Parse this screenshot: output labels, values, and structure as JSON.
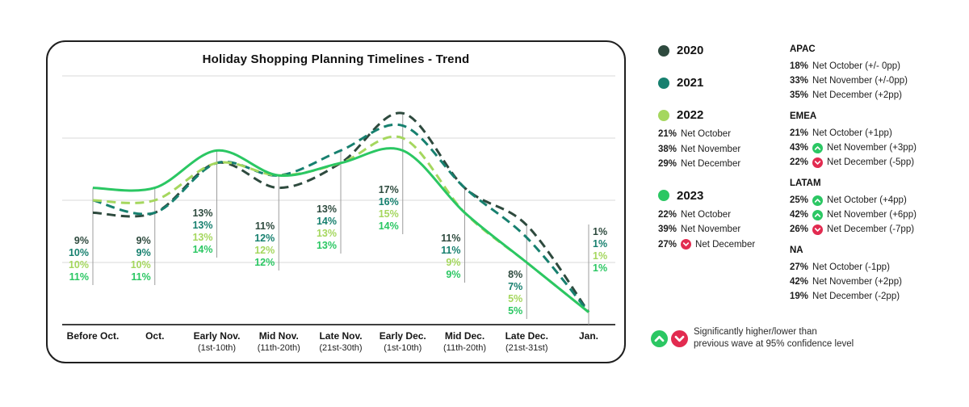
{
  "chart_data": {
    "type": "line",
    "title": "Holiday Shopping Planning Timelines - Trend",
    "ylim": [
      0,
      20
    ],
    "grid_step": 5,
    "grid": true,
    "categories": [
      {
        "label": "Before Oct.",
        "sublabel": ""
      },
      {
        "label": "Oct.",
        "sublabel": ""
      },
      {
        "label": "Early Nov.",
        "sublabel": "(1st-10th)"
      },
      {
        "label": "Mid Nov.",
        "sublabel": "(11th-20th)"
      },
      {
        "label": "Late Nov.",
        "sublabel": "(21st-30th)"
      },
      {
        "label": "Early Dec.",
        "sublabel": "(1st-10th)"
      },
      {
        "label": "Mid Dec.",
        "sublabel": "(11th-20th)"
      },
      {
        "label": "Late Dec.",
        "sublabel": "(21st-31st)"
      },
      {
        "label": "Jan.",
        "sublabel": ""
      }
    ],
    "series": [
      {
        "name": "2020",
        "color": "#2e4a3e",
        "dashed": true,
        "values": [
          9,
          9,
          13,
          11,
          13,
          17,
          11,
          8,
          1
        ]
      },
      {
        "name": "2021",
        "color": "#17806f",
        "dashed": true,
        "values": [
          10,
          9,
          13,
          12,
          14,
          16,
          11,
          7,
          1
        ]
      },
      {
        "name": "2022",
        "color": "#a5d75e",
        "dashed": true,
        "values": [
          10,
          10,
          13,
          12,
          13,
          15,
          9,
          5,
          1
        ]
      },
      {
        "name": "2023",
        "color": "#2bc763",
        "dashed": false,
        "values": [
          11,
          11,
          14,
          12,
          13,
          14,
          9,
          5,
          1
        ]
      }
    ]
  },
  "years_legend": [
    {
      "label": "2020",
      "color": "#2e4a3e",
      "stats": []
    },
    {
      "label": "2021",
      "color": "#17806f",
      "stats": []
    },
    {
      "label": "2022",
      "color": "#a5d75e",
      "stats": [
        {
          "pct": "21%",
          "arrow": "",
          "text": "Net October"
        },
        {
          "pct": "38%",
          "arrow": "",
          "text": "Net November"
        },
        {
          "pct": "29%",
          "arrow": "",
          "text": "Net December"
        }
      ]
    },
    {
      "label": "2023",
      "color": "#2bc763",
      "stats": [
        {
          "pct": "22%",
          "arrow": "",
          "text": "Net October"
        },
        {
          "pct": "39%",
          "arrow": "",
          "text": "Net November"
        },
        {
          "pct": "27%",
          "arrow": "down",
          "text": "Net December"
        }
      ]
    }
  ],
  "regions": [
    {
      "name": "APAC",
      "stats": [
        {
          "pct": "18%",
          "arrow": "",
          "text": "Net October (+/- 0pp)"
        },
        {
          "pct": "33%",
          "arrow": "",
          "text": "Net November (+/-0pp)"
        },
        {
          "pct": "35%",
          "arrow": "",
          "text": "Net December (+2pp)"
        }
      ]
    },
    {
      "name": "EMEA",
      "stats": [
        {
          "pct": "21%",
          "arrow": "",
          "text": "Net October (+1pp)"
        },
        {
          "pct": "43%",
          "arrow": "up",
          "text": "Net November (+3pp)"
        },
        {
          "pct": "22%",
          "arrow": "down",
          "text": "Net December (-5pp)"
        }
      ]
    },
    {
      "name": "LATAM",
      "stats": [
        {
          "pct": "25%",
          "arrow": "up",
          "text": "Net October (+4pp)"
        },
        {
          "pct": "42%",
          "arrow": "up",
          "text": "Net November (+6pp)"
        },
        {
          "pct": "26%",
          "arrow": "down",
          "text": "Net December (-7pp)"
        }
      ]
    },
    {
      "name": "NA",
      "stats": [
        {
          "pct": "27%",
          "arrow": "",
          "text": "Net October (-1pp)"
        },
        {
          "pct": "42%",
          "arrow": "",
          "text": "Net November (+2pp)"
        },
        {
          "pct": "19%",
          "arrow": "",
          "text": "Net December (-2pp)"
        }
      ]
    }
  ],
  "footnote": {
    "line1": "Significantly higher/lower than",
    "line2": "previous wave at 95% confidence level"
  },
  "colors": {
    "up": "#2bc763",
    "down": "#e22b50",
    "grid": "#d9d9d9",
    "axis": "#3f3f3f",
    "marker_line": "#9c9c9c"
  }
}
